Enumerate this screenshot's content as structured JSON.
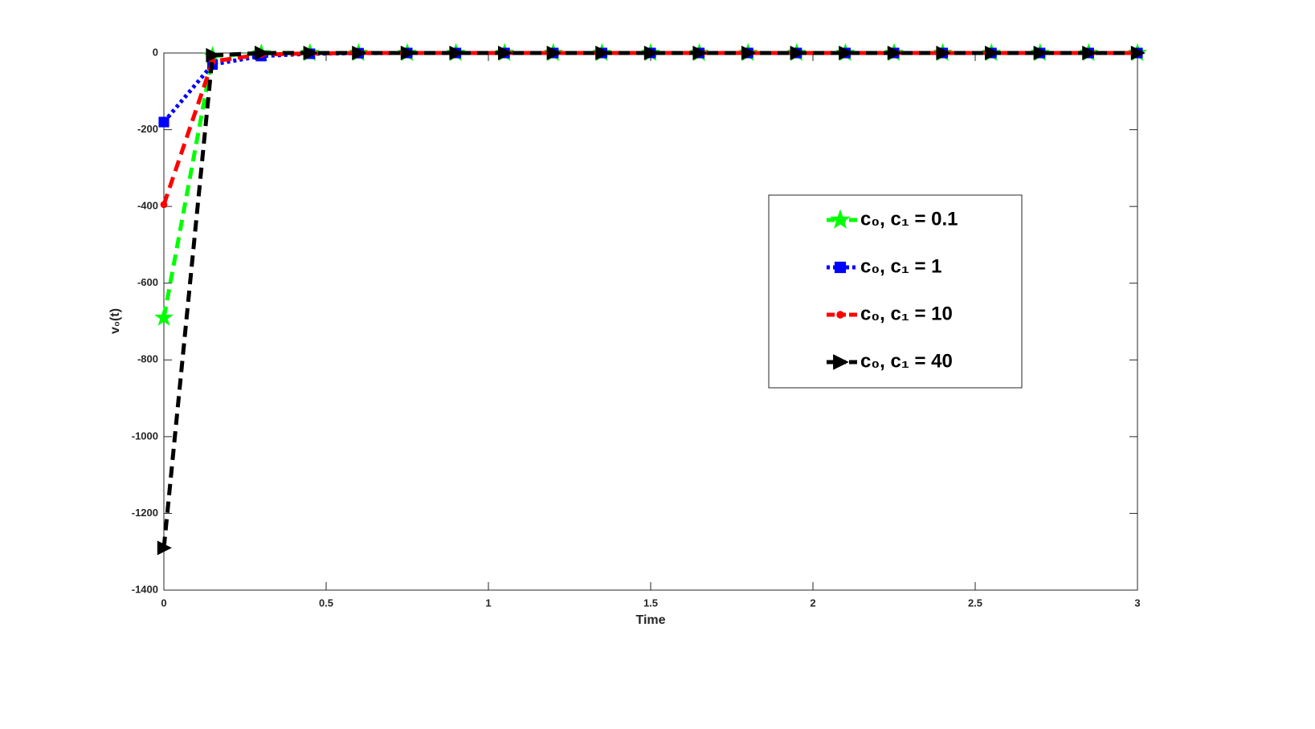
{
  "chart_data": {
    "type": "line",
    "xlabel": "Time",
    "ylabel": "v₀(t)",
    "x": [
      0,
      0.15,
      0.3,
      0.45,
      0.6,
      0.75,
      0.9,
      1.05,
      1.2,
      1.35,
      1.5,
      1.65,
      1.8,
      1.95,
      2.1,
      2.25,
      2.4,
      2.55,
      2.7,
      2.85,
      3
    ],
    "series": [
      {
        "name": "c₀, c₁ = 0.1",
        "color": "#00ff00",
        "marker": "star",
        "linestyle": "dashed",
        "values": [
          -690,
          -8,
          -1,
          0,
          0,
          0,
          0,
          0,
          0,
          0,
          0,
          0,
          0,
          0,
          0,
          0,
          0,
          0,
          0,
          0,
          0
        ]
      },
      {
        "name": "c₀, c₁ = 1",
        "color": "#0000ff",
        "marker": "square",
        "linestyle": "dotted",
        "values": [
          -180,
          -30,
          -8,
          -2,
          -0.5,
          0,
          0,
          0,
          0,
          0,
          0,
          0,
          0,
          0,
          0,
          0,
          0,
          0,
          0,
          0,
          0
        ]
      },
      {
        "name": "c₀, c₁ = 10",
        "color": "#ff0000",
        "marker": "point",
        "linestyle": "dashed",
        "values": [
          -395,
          -22,
          -4,
          -1,
          0,
          0,
          0,
          0,
          0,
          0,
          0,
          0,
          0,
          0,
          0,
          0,
          0,
          0,
          0,
          0,
          0
        ]
      },
      {
        "name": "c₀, c₁ = 40",
        "color": "#000000",
        "marker": "triangle-right",
        "linestyle": "dashed",
        "values": [
          -1290,
          -6,
          0,
          0,
          0,
          0,
          0,
          0,
          0,
          0,
          0,
          0,
          0,
          0,
          0,
          0,
          0,
          0,
          0,
          0,
          0
        ]
      }
    ],
    "xlim": [
      0,
      3
    ],
    "xticks": [
      0,
      0.5,
      1,
      1.5,
      2,
      2.5,
      3
    ],
    "ylim": [
      -1400,
      0
    ],
    "yticks": [
      -1400,
      -1200,
      -1000,
      -800,
      -600,
      -400,
      -200,
      0
    ],
    "grid": false,
    "legend": "right"
  }
}
